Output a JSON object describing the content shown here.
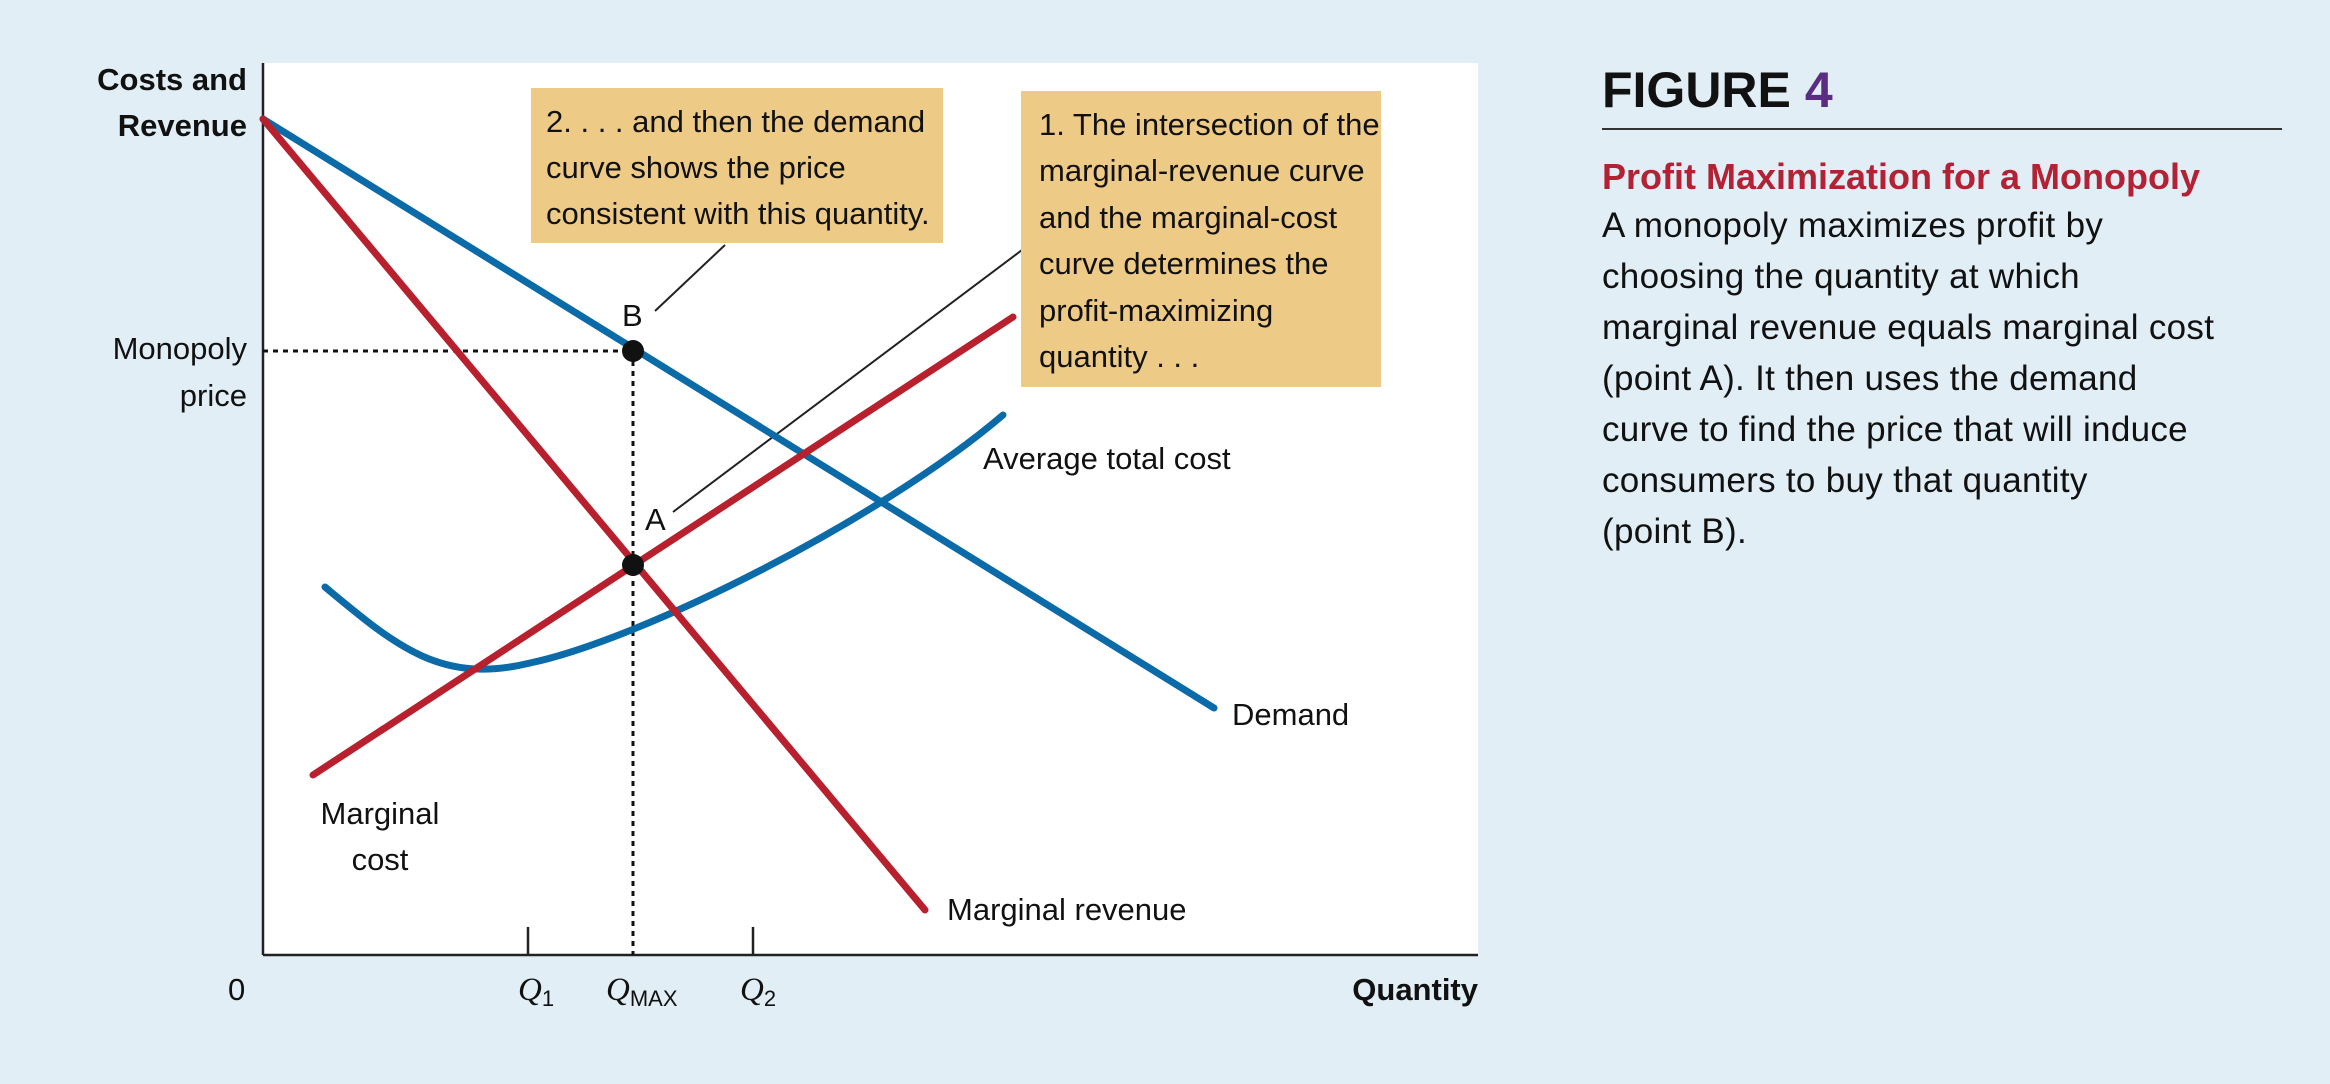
{
  "figure": {
    "label": "FIGURE",
    "number": "4",
    "title": "Profit Maximization for a Monopoly",
    "caption": "A monopoly maximizes profit by choosing the quantity at which marginal revenue equals marginal cost (point A). It then uses the demand curve to find the price that will induce consumers to buy that quantity (point B).",
    "caption_lines": [
      "A monopoly maximizes profit by",
      "choosing the quantity at which",
      "marginal revenue equals marginal cost",
      "(point A). It then uses the demand",
      "curve to find the price that will induce",
      "consumers to buy that quantity",
      "(point B)."
    ]
  },
  "diagram": {
    "y_axis_title_lines": [
      "Costs and",
      "Revenue"
    ],
    "x_axis_title": "Quantity",
    "origin_label": "0",
    "price_label_lines": [
      "Monopoly",
      "price"
    ],
    "ticks": [
      {
        "main": "Q",
        "sub": "1"
      },
      {
        "main": "Q",
        "sub": "MAX"
      },
      {
        "main": "Q",
        "sub": "2"
      }
    ],
    "curves": {
      "demand": "Demand",
      "marginal_revenue": "Marginal revenue",
      "average_total_cost": "Average total cost",
      "marginal_cost_lines": [
        "Marginal",
        "cost"
      ]
    },
    "points": {
      "a": "A",
      "b": "B"
    },
    "callout_1_lines": [
      "1. The intersection of the",
      "marginal-revenue curve",
      "and the marginal-cost",
      "curve determines the",
      "profit-maximizing",
      "quantity . . ."
    ],
    "callout_2_lines": [
      "2. . . . and then the demand",
      "curve shows the price",
      "consistent with this quantity."
    ]
  },
  "colors": {
    "background": "#e1eef5",
    "blue_curve": "#0b6aa8",
    "red_curve": "#b8202e",
    "callout_fill": "#edca86",
    "accent_purple": "#5a2d82",
    "title_red": "#b22234"
  }
}
